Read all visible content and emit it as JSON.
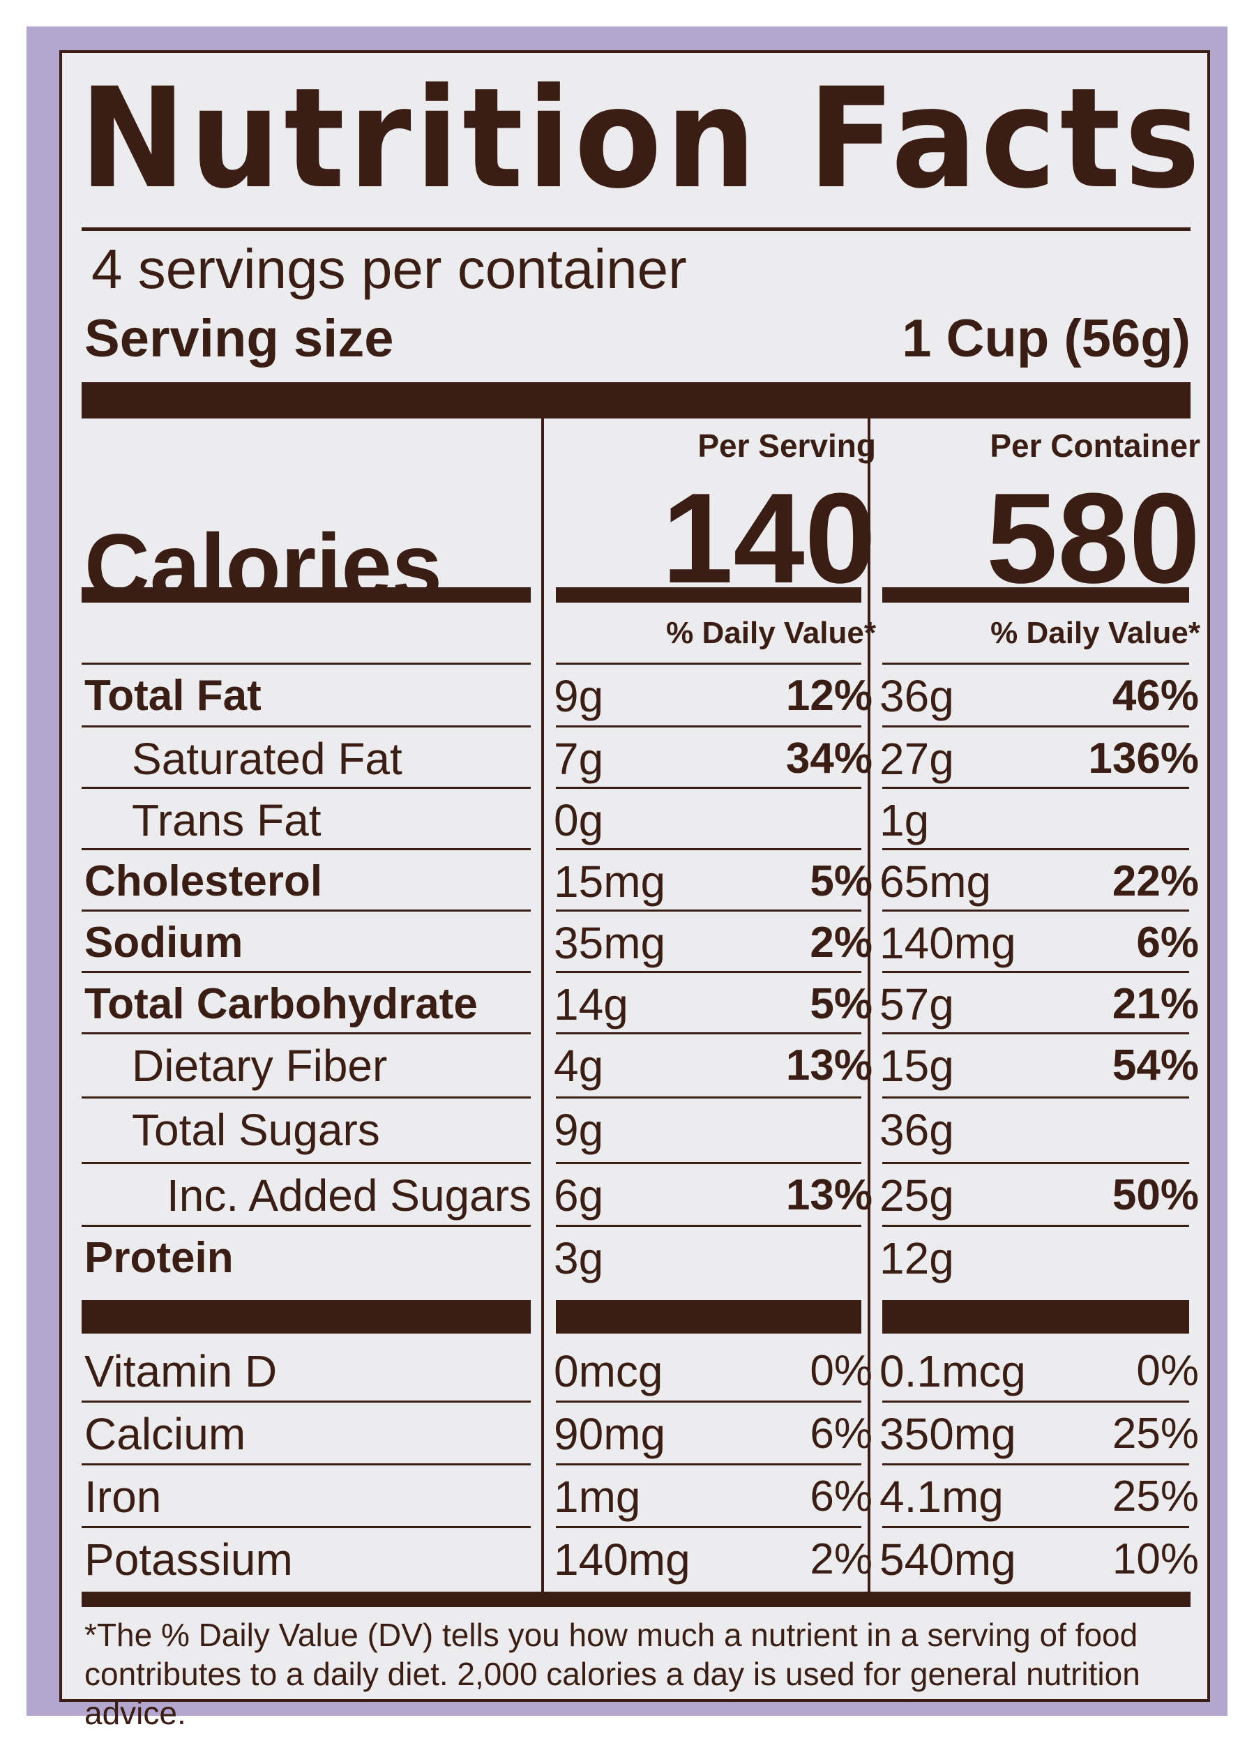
{
  "label": {
    "title": "Nutrition Facts",
    "servings_per_container": "4 servings per container",
    "serving_size_label": "Serving size",
    "serving_size_value": "1 Cup (56g)",
    "calories_label": "Calories",
    "per_serving_header": "Per Serving",
    "per_container_header": "Per Container",
    "calories_per_serving": "140",
    "calories_per_container": "580",
    "daily_value_header": "% Daily Value*",
    "nutrients": [
      {
        "name": "Total Fat",
        "serving_amount": "9g",
        "serving_dv": "12%",
        "container_amount": "36g",
        "container_dv": "46%"
      },
      {
        "name": "Saturated Fat",
        "serving_amount": "7g",
        "serving_dv": "34%",
        "container_amount": "27g",
        "container_dv": "136%"
      },
      {
        "name": "Trans Fat",
        "serving_amount": "0g",
        "serving_dv": "",
        "container_amount": "1g",
        "container_dv": ""
      },
      {
        "name": "Cholesterol",
        "serving_amount": "15mg",
        "serving_dv": "5%",
        "container_amount": "65mg",
        "container_dv": "22%"
      },
      {
        "name": "Sodium",
        "serving_amount": "35mg",
        "serving_dv": "2%",
        "container_amount": "140mg",
        "container_dv": "6%"
      },
      {
        "name": "Total Carbohydrate",
        "serving_amount": "14g",
        "serving_dv": "5%",
        "container_amount": "57g",
        "container_dv": "21%"
      },
      {
        "name": "Dietary Fiber",
        "serving_amount": "4g",
        "serving_dv": "13%",
        "container_amount": "15g",
        "container_dv": "54%"
      },
      {
        "name": "Total Sugars",
        "serving_amount": "9g",
        "serving_dv": "",
        "container_amount": "36g",
        "container_dv": ""
      },
      {
        "name": "Inc. Added Sugars",
        "serving_amount": "6g",
        "serving_dv": "13%",
        "container_amount": "25g",
        "container_dv": "50%"
      },
      {
        "name": "Protein",
        "serving_amount": "3g",
        "serving_dv": "",
        "container_amount": "12g",
        "container_dv": ""
      }
    ],
    "vitamins": [
      {
        "name": "Vitamin D",
        "serving_amount": "0mcg",
        "serving_dv": "0%",
        "container_amount": "0.1mcg",
        "container_dv": "0%"
      },
      {
        "name": "Calcium",
        "serving_amount": "90mg",
        "serving_dv": "6%",
        "container_amount": "350mg",
        "container_dv": "25%"
      },
      {
        "name": "Iron",
        "serving_amount": "1mg",
        "serving_dv": "6%",
        "container_amount": "4.1mg",
        "container_dv": "25%"
      },
      {
        "name": "Potassium",
        "serving_amount": "140mg",
        "serving_dv": "2%",
        "container_amount": "540mg",
        "container_dv": "10%"
      }
    ],
    "footnote_line1": "*The % Daily Value (DV) tells you how much a nutrient in a serving of food",
    "footnote_line2": "contributes to a daily diet. 2,000 calories a day is used for general nutrition advice."
  },
  "colors": {
    "ink": "#3a1d14",
    "label_background": "#ececee",
    "package_purple": "#b3a7cf"
  }
}
